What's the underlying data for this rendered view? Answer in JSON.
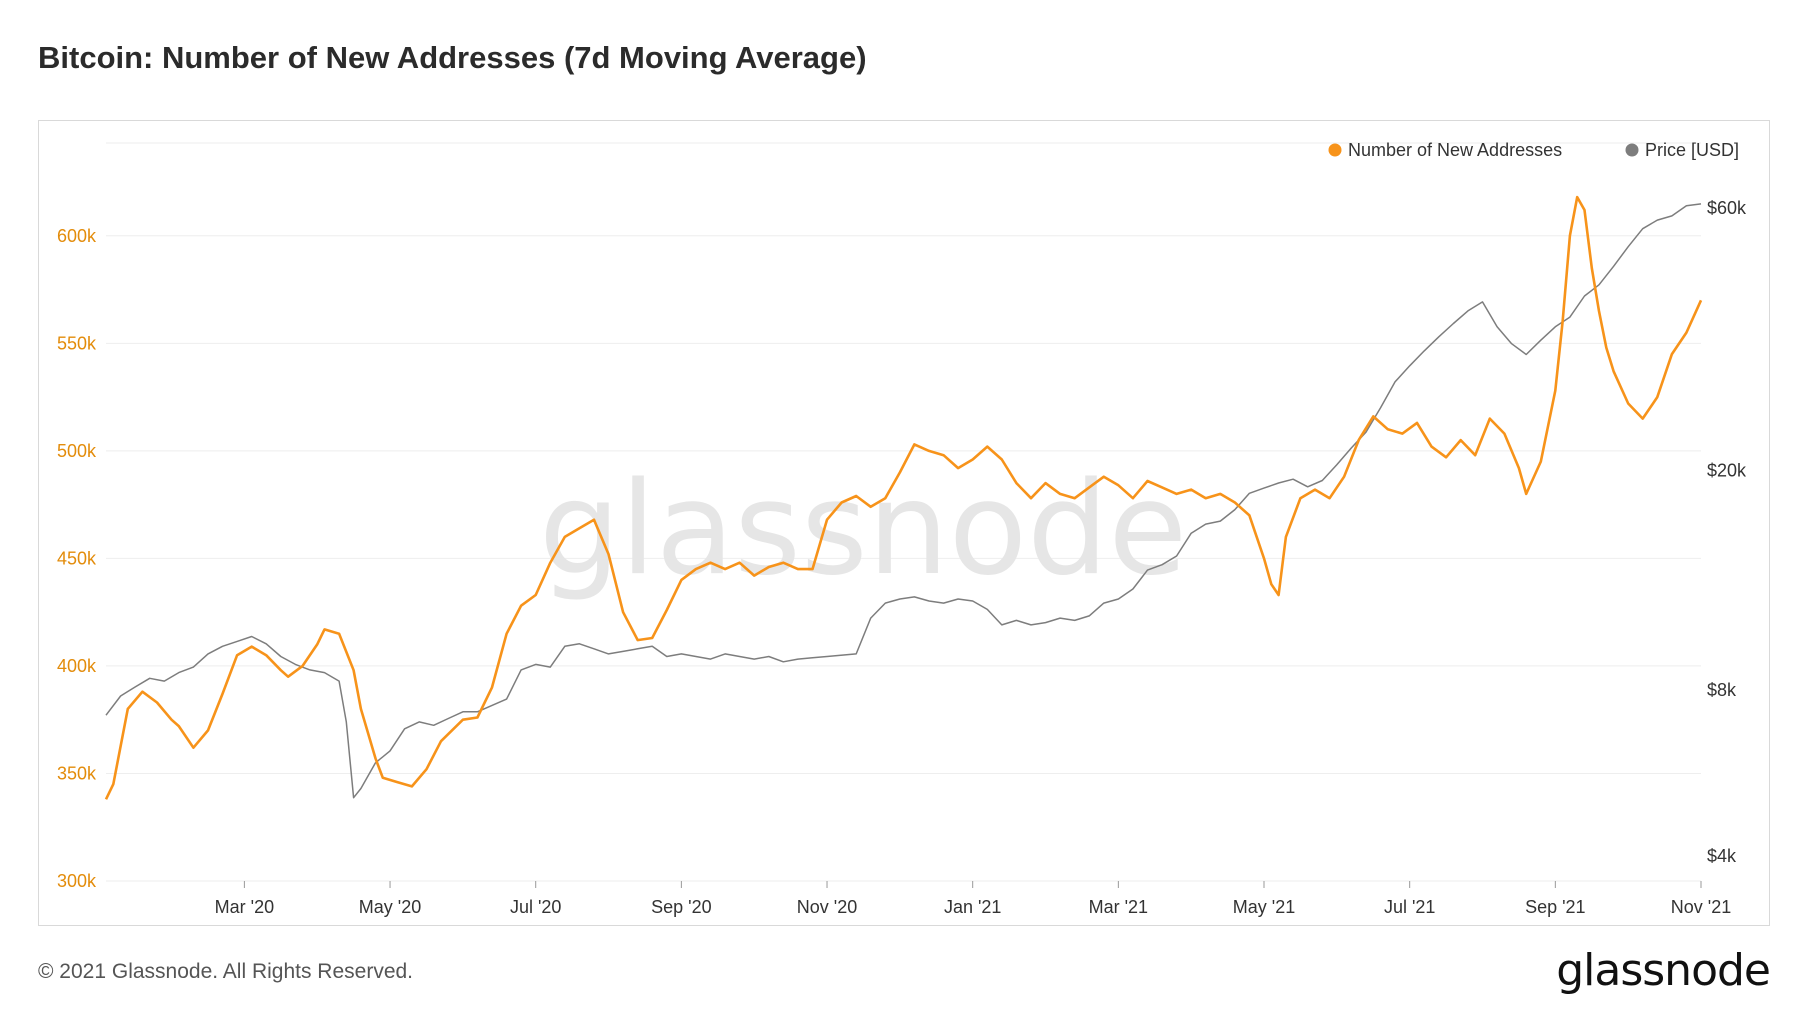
{
  "page": {
    "copyright": "© 2021 Glassnode. All Rights Reserved.",
    "brand": "glassnode"
  },
  "colors": {
    "addresses": "#f7931a",
    "price": "#7d7d7d",
    "grid": "#eeeeee",
    "left_axis": "#e38c0b",
    "right_axis": "#333333"
  },
  "chart_data": {
    "type": "line",
    "title": "Bitcoin: Number of New Addresses (7d Moving Average)",
    "watermark": "glassnode",
    "legend": [
      {
        "name": "Number of New Addresses",
        "color": "#f7931a"
      },
      {
        "name": "Price [USD]",
        "color": "#7d7d7d"
      }
    ],
    "x_ticks": [
      "Mar '20",
      "May '20",
      "Jul '20",
      "Sep '20",
      "Nov '20",
      "Jan '21",
      "Mar '21",
      "May '21",
      "Jul '21",
      "Sep '21",
      "Nov '21"
    ],
    "x_tick_months": [
      2,
      4,
      6,
      8,
      10,
      12,
      14,
      16,
      18,
      20,
      22
    ],
    "x_range_months": [
      0.1,
      22.0
    ],
    "y_left": {
      "ticks": [
        300000,
        350000,
        400000,
        450000,
        500000,
        550000,
        600000
      ],
      "labels": [
        "300k",
        "350k",
        "400k",
        "450k",
        "500k",
        "550k",
        "600k"
      ],
      "range": [
        300000,
        645000
      ]
    },
    "y_right": {
      "scale": "log",
      "ticks": [
        4000,
        8000,
        20000,
        60000
      ],
      "labels": [
        "$4k",
        "$8k",
        "$20k",
        "$60k"
      ],
      "range": [
        3600,
        80000
      ]
    },
    "series": [
      {
        "name": "Number of New Addresses",
        "axis": "left",
        "points": [
          [
            0.1,
            338000
          ],
          [
            0.2,
            345000
          ],
          [
            0.4,
            380000
          ],
          [
            0.6,
            388000
          ],
          [
            0.8,
            383000
          ],
          [
            1.0,
            375000
          ],
          [
            1.1,
            372000
          ],
          [
            1.3,
            362000
          ],
          [
            1.5,
            370000
          ],
          [
            1.7,
            387000
          ],
          [
            1.9,
            405000
          ],
          [
            2.1,
            409000
          ],
          [
            2.3,
            405000
          ],
          [
            2.5,
            398000
          ],
          [
            2.6,
            395000
          ],
          [
            2.8,
            400000
          ],
          [
            3.0,
            410000
          ],
          [
            3.1,
            417000
          ],
          [
            3.3,
            415000
          ],
          [
            3.5,
            398000
          ],
          [
            3.6,
            380000
          ],
          [
            3.8,
            357000
          ],
          [
            3.9,
            348000
          ],
          [
            4.1,
            346000
          ],
          [
            4.3,
            344000
          ],
          [
            4.5,
            352000
          ],
          [
            4.7,
            365000
          ],
          [
            5.0,
            375000
          ],
          [
            5.2,
            376000
          ],
          [
            5.4,
            390000
          ],
          [
            5.6,
            415000
          ],
          [
            5.8,
            428000
          ],
          [
            6.0,
            433000
          ],
          [
            6.2,
            448000
          ],
          [
            6.4,
            460000
          ],
          [
            6.6,
            464000
          ],
          [
            6.8,
            468000
          ],
          [
            7.0,
            452000
          ],
          [
            7.2,
            425000
          ],
          [
            7.4,
            412000
          ],
          [
            7.6,
            413000
          ],
          [
            7.8,
            426000
          ],
          [
            8.0,
            440000
          ],
          [
            8.2,
            445000
          ],
          [
            8.4,
            448000
          ],
          [
            8.6,
            445000
          ],
          [
            8.8,
            448000
          ],
          [
            9.0,
            442000
          ],
          [
            9.2,
            446000
          ],
          [
            9.4,
            448000
          ],
          [
            9.6,
            445000
          ],
          [
            9.8,
            445000
          ],
          [
            10.0,
            468000
          ],
          [
            10.2,
            476000
          ],
          [
            10.4,
            479000
          ],
          [
            10.6,
            474000
          ],
          [
            10.8,
            478000
          ],
          [
            11.0,
            490000
          ],
          [
            11.2,
            503000
          ],
          [
            11.4,
            500000
          ],
          [
            11.6,
            498000
          ],
          [
            11.8,
            492000
          ],
          [
            12.0,
            496000
          ],
          [
            12.2,
            502000
          ],
          [
            12.4,
            496000
          ],
          [
            12.6,
            485000
          ],
          [
            12.8,
            478000
          ],
          [
            13.0,
            485000
          ],
          [
            13.2,
            480000
          ],
          [
            13.4,
            478000
          ],
          [
            13.6,
            483000
          ],
          [
            13.8,
            488000
          ],
          [
            14.0,
            484000
          ],
          [
            14.2,
            478000
          ],
          [
            14.4,
            486000
          ],
          [
            14.6,
            483000
          ],
          [
            14.8,
            480000
          ],
          [
            15.0,
            482000
          ],
          [
            15.2,
            478000
          ],
          [
            15.4,
            480000
          ],
          [
            15.6,
            476000
          ],
          [
            15.8,
            470000
          ],
          [
            16.0,
            450000
          ],
          [
            16.1,
            438000
          ],
          [
            16.2,
            433000
          ],
          [
            16.3,
            460000
          ],
          [
            16.5,
            478000
          ],
          [
            16.7,
            482000
          ],
          [
            16.9,
            478000
          ],
          [
            17.1,
            488000
          ],
          [
            17.3,
            505000
          ],
          [
            17.5,
            516000
          ],
          [
            17.7,
            510000
          ],
          [
            17.9,
            508000
          ],
          [
            18.1,
            513000
          ],
          [
            18.3,
            502000
          ],
          [
            18.5,
            497000
          ],
          [
            18.7,
            505000
          ],
          [
            18.9,
            498000
          ],
          [
            19.1,
            515000
          ],
          [
            19.3,
            508000
          ],
          [
            19.5,
            492000
          ],
          [
            19.6,
            480000
          ],
          [
            19.8,
            495000
          ],
          [
            20.0,
            528000
          ],
          [
            20.1,
            560000
          ],
          [
            20.2,
            600000
          ],
          [
            20.3,
            618000
          ],
          [
            20.4,
            612000
          ],
          [
            20.5,
            585000
          ],
          [
            20.6,
            565000
          ],
          [
            20.7,
            548000
          ],
          [
            20.8,
            537000
          ],
          [
            21.0,
            522000
          ],
          [
            21.2,
            515000
          ],
          [
            21.4,
            525000
          ],
          [
            21.6,
            545000
          ],
          [
            21.8,
            555000
          ],
          [
            22.0,
            570000
          ]
        ]
      },
      {
        "name": "Price [USD]",
        "axis": "right",
        "points": [
          [
            0.1,
            7200
          ],
          [
            0.3,
            7800
          ],
          [
            0.5,
            8100
          ],
          [
            0.7,
            8400
          ],
          [
            0.9,
            8300
          ],
          [
            1.1,
            8600
          ],
          [
            1.3,
            8800
          ],
          [
            1.5,
            9300
          ],
          [
            1.7,
            9600
          ],
          [
            1.9,
            9800
          ],
          [
            2.1,
            10000
          ],
          [
            2.3,
            9700
          ],
          [
            2.5,
            9200
          ],
          [
            2.7,
            8900
          ],
          [
            2.9,
            8700
          ],
          [
            3.1,
            8600
          ],
          [
            3.3,
            8300
          ],
          [
            3.4,
            7000
          ],
          [
            3.5,
            5100
          ],
          [
            3.6,
            5300
          ],
          [
            3.8,
            5900
          ],
          [
            4.0,
            6200
          ],
          [
            4.2,
            6800
          ],
          [
            4.4,
            7000
          ],
          [
            4.6,
            6900
          ],
          [
            4.8,
            7100
          ],
          [
            5.0,
            7300
          ],
          [
            5.2,
            7300
          ],
          [
            5.4,
            7500
          ],
          [
            5.6,
            7700
          ],
          [
            5.8,
            8700
          ],
          [
            6.0,
            8900
          ],
          [
            6.2,
            8800
          ],
          [
            6.4,
            9600
          ],
          [
            6.6,
            9700
          ],
          [
            6.8,
            9500
          ],
          [
            7.0,
            9300
          ],
          [
            7.2,
            9400
          ],
          [
            7.4,
            9500
          ],
          [
            7.6,
            9600
          ],
          [
            7.8,
            9200
          ],
          [
            8.0,
            9300
          ],
          [
            8.2,
            9200
          ],
          [
            8.4,
            9100
          ],
          [
            8.6,
            9300
          ],
          [
            8.8,
            9200
          ],
          [
            9.0,
            9100
          ],
          [
            9.2,
            9200
          ],
          [
            9.4,
            9000
          ],
          [
            9.6,
            9100
          ],
          [
            9.8,
            9150
          ],
          [
            10.0,
            9200
          ],
          [
            10.4,
            9300
          ],
          [
            10.6,
            10800
          ],
          [
            10.8,
            11500
          ],
          [
            11.0,
            11700
          ],
          [
            11.2,
            11800
          ],
          [
            11.4,
            11600
          ],
          [
            11.6,
            11500
          ],
          [
            11.8,
            11700
          ],
          [
            12.0,
            11600
          ],
          [
            12.2,
            11200
          ],
          [
            12.4,
            10500
          ],
          [
            12.6,
            10700
          ],
          [
            12.8,
            10500
          ],
          [
            13.0,
            10600
          ],
          [
            13.2,
            10800
          ],
          [
            13.4,
            10700
          ],
          [
            13.6,
            10900
          ],
          [
            13.8,
            11500
          ],
          [
            14.0,
            11700
          ],
          [
            14.2,
            12200
          ],
          [
            14.4,
            13200
          ],
          [
            14.6,
            13500
          ],
          [
            14.8,
            14000
          ],
          [
            15.0,
            15400
          ],
          [
            15.2,
            16000
          ],
          [
            15.4,
            16200
          ],
          [
            15.6,
            17000
          ],
          [
            15.8,
            18200
          ],
          [
            16.0,
            18600
          ],
          [
            16.2,
            19000
          ],
          [
            16.4,
            19300
          ],
          [
            16.6,
            18700
          ],
          [
            16.8,
            19200
          ],
          [
            17.0,
            20500
          ],
          [
            17.2,
            22000
          ],
          [
            17.4,
            23500
          ],
          [
            17.6,
            26000
          ],
          [
            17.8,
            29000
          ],
          [
            18.0,
            31000
          ],
          [
            18.2,
            33000
          ],
          [
            18.4,
            35000
          ],
          [
            18.6,
            37000
          ],
          [
            18.8,
            39000
          ],
          [
            19.0,
            40500
          ],
          [
            19.2,
            36500
          ],
          [
            19.4,
            34000
          ],
          [
            19.6,
            32500
          ],
          [
            19.8,
            34500
          ],
          [
            20.0,
            36500
          ],
          [
            20.2,
            38000
          ],
          [
            20.4,
            41500
          ],
          [
            20.6,
            43500
          ],
          [
            20.8,
            47000
          ],
          [
            21.0,
            51000
          ],
          [
            21.2,
            55000
          ],
          [
            21.4,
            57000
          ],
          [
            21.6,
            58000
          ],
          [
            21.8,
            60500
          ],
          [
            22.0,
            61000
          ]
        ]
      }
    ]
  }
}
